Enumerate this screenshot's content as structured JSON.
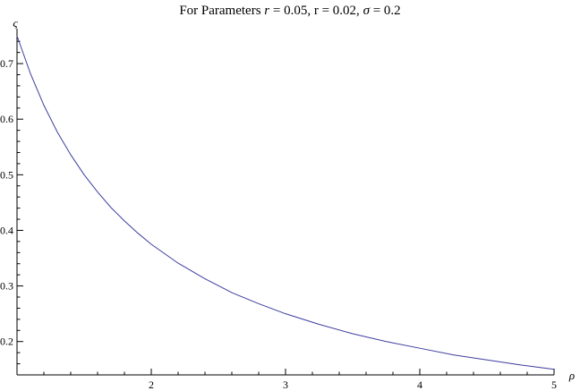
{
  "chart_data": {
    "type": "line",
    "title": "For Parameters r = 0.05, r = 0.02, σ = 0.2",
    "title_parts": [
      {
        "text": "For Parameters ",
        "italic": false
      },
      {
        "text": "r",
        "italic": true
      },
      {
        "text": " = 0.05, r = 0.02, ",
        "italic": false
      },
      {
        "text": "σ",
        "italic": true
      },
      {
        "text": " = 0.2",
        "italic": false
      }
    ],
    "xlabel": "ρ",
    "ylabel": "ς",
    "xlim": [
      1,
      5
    ],
    "ylim": [
      0.14,
      0.75
    ],
    "x_ticks": [
      {
        "value": 2,
        "label": "2"
      },
      {
        "value": 3,
        "label": "3"
      },
      {
        "value": 4,
        "label": "4"
      },
      {
        "value": 5,
        "label": "5"
      }
    ],
    "y_ticks": [
      {
        "value": 0.2,
        "label": "0.2"
      },
      {
        "value": 0.3,
        "label": "0.3"
      },
      {
        "value": 0.4,
        "label": "0.4"
      },
      {
        "value": 0.5,
        "label": "0.5"
      },
      {
        "value": 0.6,
        "label": "0.6"
      },
      {
        "value": 0.7,
        "label": "0.7"
      }
    ],
    "grid": false,
    "series": [
      {
        "color": "#3d3d9e",
        "x": [
          1.0,
          1.1,
          1.2,
          1.3,
          1.4,
          1.5,
          1.6,
          1.7,
          1.8,
          1.9,
          2.0,
          2.2,
          2.4,
          2.6,
          2.8,
          3.0,
          3.25,
          3.5,
          3.75,
          4.0,
          4.25,
          4.5,
          4.75,
          5.0
        ],
        "y": [
          0.75,
          0.682,
          0.625,
          0.577,
          0.536,
          0.5,
          0.469,
          0.441,
          0.417,
          0.395,
          0.375,
          0.341,
          0.313,
          0.288,
          0.268,
          0.25,
          0.231,
          0.214,
          0.2,
          0.188,
          0.176,
          0.167,
          0.158,
          0.15
        ]
      }
    ]
  }
}
